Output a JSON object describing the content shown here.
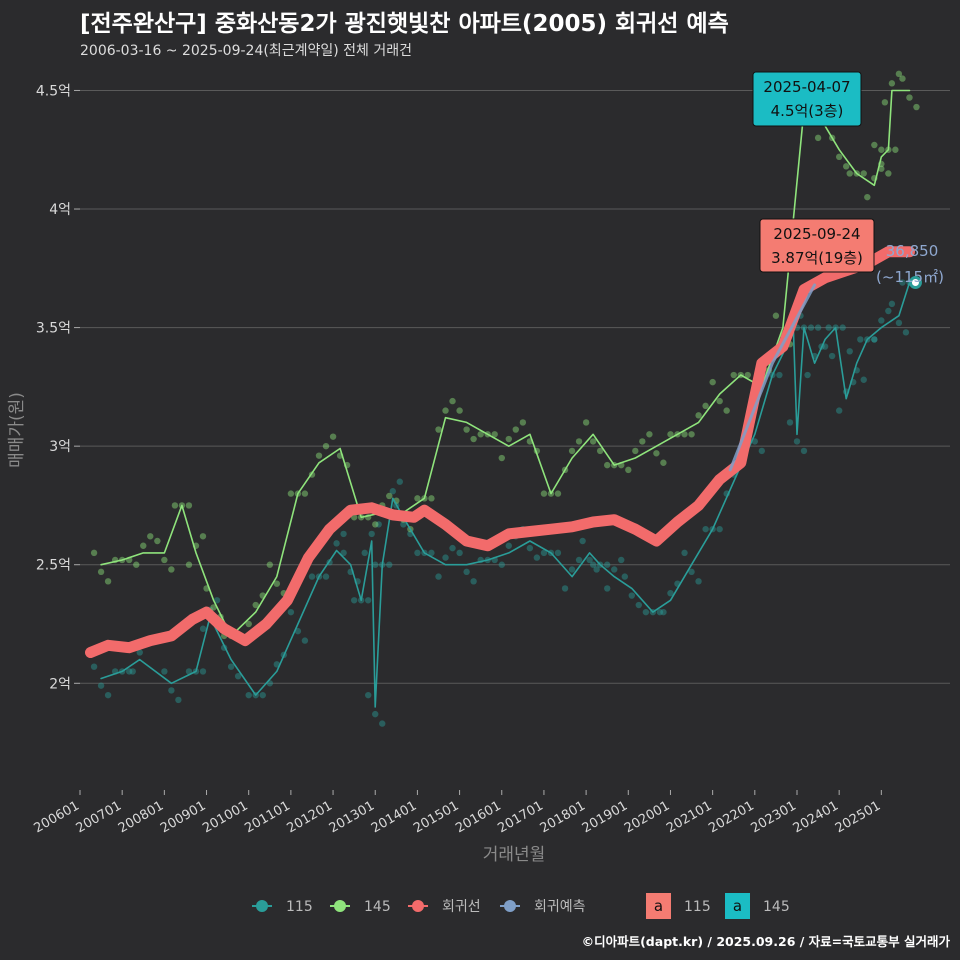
{
  "header": {
    "title": "[전주완산구] 중화산동2가 광진햇빛찬 아파트(2005) 회귀선 예측",
    "subtitle": "2006-03-16 ~ 2025-09-24(최근계약일) 전체 거래건"
  },
  "footer": {
    "credit": "©디아파트(dapt.kr) / 2025.09.26 / 자료=국토교통부 실거래가"
  },
  "colors": {
    "background": "#2b2b2d",
    "grid": "#5a5a5a",
    "s115": "#2a9d99",
    "s145": "#8fe47c",
    "regression": "#f26b6b",
    "forecast": "#7f9fc8",
    "box145": "#1bbcc4",
    "box115": "#f47c72"
  },
  "chart_data": {
    "type": "line",
    "xlabel": "거래년월",
    "ylabel": "매매가(원)",
    "xlim": [
      "2006-01",
      "2025-12"
    ],
    "ylim": [
      1.55,
      4.62
    ],
    "y_unit": "억",
    "yticks": [
      {
        "v": 2,
        "label": "2억"
      },
      {
        "v": 2.5,
        "label": "2.5억"
      },
      {
        "v": 3,
        "label": "3억"
      },
      {
        "v": 3.5,
        "label": "3.5억"
      },
      {
        "v": 4,
        "label": "4억"
      },
      {
        "v": 4.5,
        "label": "4.5억"
      }
    ],
    "xticks": [
      "200601",
      "200701",
      "200801",
      "200901",
      "201001",
      "201101",
      "201201",
      "201301",
      "201401",
      "201501",
      "201601",
      "201701",
      "201801",
      "201901",
      "202001",
      "202101",
      "202201",
      "202301",
      "202401",
      "202501"
    ],
    "series": [
      {
        "name": "115",
        "key": "s115",
        "x": [
          "2006-07",
          "2007-01",
          "2007-06",
          "2008-03",
          "2008-10",
          "2009-02",
          "2009-08",
          "2010-03",
          "2010-09",
          "2011-03",
          "2011-09",
          "2012-02",
          "2012-06",
          "2012-09",
          "2012-12",
          "2013-01",
          "2013-03",
          "2013-06",
          "2013-09",
          "2014-03",
          "2014-09",
          "2015-03",
          "2015-09",
          "2016-03",
          "2016-09",
          "2017-03",
          "2017-09",
          "2018-02",
          "2018-05",
          "2018-09",
          "2019-02",
          "2019-08",
          "2020-01",
          "2020-07",
          "2021-01",
          "2021-07",
          "2022-01",
          "2022-06",
          "2022-12",
          "2023-01",
          "2023-03",
          "2023-06",
          "2023-09",
          "2023-12",
          "2024-03",
          "2024-06",
          "2024-09",
          "2025-01",
          "2025-06",
          "2025-09"
        ],
        "values": [
          2.02,
          2.05,
          2.1,
          2.0,
          2.05,
          2.28,
          2.1,
          1.95,
          2.05,
          2.25,
          2.45,
          2.56,
          2.5,
          2.35,
          2.6,
          1.9,
          2.5,
          2.78,
          2.7,
          2.55,
          2.5,
          2.5,
          2.52,
          2.55,
          2.6,
          2.55,
          2.45,
          2.55,
          2.5,
          2.45,
          2.4,
          2.3,
          2.35,
          2.5,
          2.65,
          2.85,
          3.05,
          3.3,
          3.48,
          3.05,
          3.5,
          3.35,
          3.45,
          3.5,
          3.2,
          3.35,
          3.45,
          3.5,
          3.55,
          3.69
        ]
      },
      {
        "name": "145",
        "key": "s145",
        "x": [
          "2006-07",
          "2007-01",
          "2007-07",
          "2008-01",
          "2008-06",
          "2008-10",
          "2009-03",
          "2009-08",
          "2010-03",
          "2010-09",
          "2011-03",
          "2011-09",
          "2012-03",
          "2012-09",
          "2013-03",
          "2013-09",
          "2014-03",
          "2014-09",
          "2015-03",
          "2015-09",
          "2016-03",
          "2016-09",
          "2017-03",
          "2017-09",
          "2018-03",
          "2018-09",
          "2019-03",
          "2019-09",
          "2020-03",
          "2020-09",
          "2021-03",
          "2021-09",
          "2022-03",
          "2022-09",
          "2023-03",
          "2023-09",
          "2024-01",
          "2024-06",
          "2024-11",
          "2025-01",
          "2025-03",
          "2025-04",
          "2025-09"
        ],
        "values": [
          2.5,
          2.52,
          2.55,
          2.55,
          2.75,
          2.55,
          2.35,
          2.2,
          2.3,
          2.45,
          2.8,
          2.93,
          2.99,
          2.7,
          2.72,
          2.72,
          2.78,
          3.12,
          3.1,
          3.05,
          3.0,
          3.05,
          2.8,
          2.95,
          3.05,
          2.92,
          2.95,
          3.0,
          3.05,
          3.1,
          3.22,
          3.3,
          3.25,
          3.5,
          4.42,
          4.35,
          4.25,
          4.15,
          4.1,
          4.22,
          4.25,
          4.5,
          4.5
        ]
      },
      {
        "name": "회귀선",
        "key": "regression",
        "x": [
          "2006-04",
          "2006-09",
          "2007-03",
          "2007-09",
          "2008-03",
          "2008-09",
          "2009-01",
          "2009-06",
          "2009-12",
          "2010-06",
          "2010-12",
          "2011-06",
          "2011-12",
          "2012-06",
          "2012-12",
          "2013-06",
          "2013-12",
          "2014-03",
          "2014-09",
          "2015-03",
          "2015-09",
          "2016-03",
          "2016-09",
          "2017-03",
          "2017-09",
          "2018-03",
          "2018-09",
          "2019-03",
          "2019-09",
          "2020-03",
          "2020-09",
          "2021-03",
          "2021-09",
          "2022-03",
          "2022-09",
          "2023-03",
          "2023-09",
          "2024-03",
          "2024-09",
          "2025-03",
          "2025-09"
        ],
        "values": [
          2.13,
          2.16,
          2.15,
          2.18,
          2.2,
          2.27,
          2.3,
          2.23,
          2.18,
          2.25,
          2.35,
          2.53,
          2.65,
          2.73,
          2.74,
          2.71,
          2.7,
          2.73,
          2.67,
          2.6,
          2.58,
          2.63,
          2.64,
          2.65,
          2.66,
          2.68,
          2.69,
          2.65,
          2.6,
          2.68,
          2.75,
          2.86,
          2.93,
          3.35,
          3.42,
          3.66,
          3.71,
          3.74,
          3.77,
          3.82,
          3.82
        ]
      },
      {
        "name": "회귀예측",
        "key": "forecast",
        "x": [
          "2021-06",
          "2022-06",
          "2023-06"
        ],
        "values": [
          2.9,
          3.35,
          3.68
        ]
      }
    ],
    "annotations": [
      {
        "date": "2025-04-07",
        "label": "4.5억(3층)",
        "series": "145"
      },
      {
        "date": "2025-09-24",
        "label": "3.87억(19층)",
        "series": "115"
      }
    ],
    "last_point": {
      "value_line1": "36,850",
      "value_line2": "(~115㎡)"
    },
    "legend": {
      "position": "bottom",
      "items": [
        {
          "label": "115",
          "key": "s115"
        },
        {
          "label": "145",
          "key": "s145"
        },
        {
          "label": "회귀선",
          "key": "regression"
        },
        {
          "label": "회귀예측",
          "key": "forecast"
        }
      ],
      "box_glyph": "a",
      "box_items": [
        {
          "label": "115",
          "key": "box115"
        },
        {
          "label": "145",
          "key": "box145"
        }
      ]
    }
  }
}
